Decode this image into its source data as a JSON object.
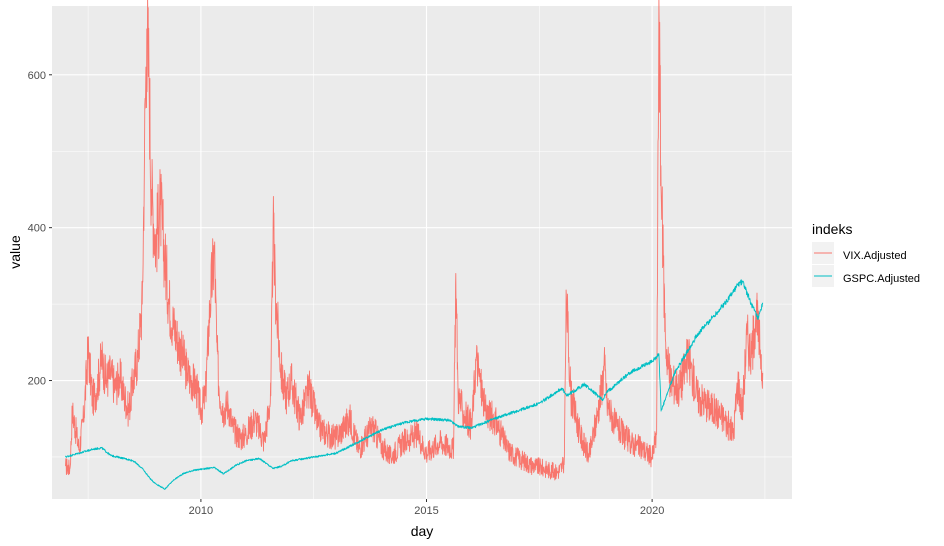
{
  "chart_data": {
    "type": "line",
    "title": "",
    "xlabel": "day",
    "ylabel": "value",
    "xlim": [
      2006.7,
      2023.1
    ],
    "ylim": [
      45,
      690
    ],
    "x_ticks": [
      2010,
      2015,
      2020
    ],
    "x_tick_labels": [
      "2010",
      "2015",
      "2020"
    ],
    "y_ticks": [
      200,
      400,
      600
    ],
    "y_tick_labels": [
      "200",
      "400",
      "600"
    ],
    "grid": true,
    "legend": {
      "title": "indeks",
      "position": "right",
      "entries": [
        "VIX.Adjusted",
        "GSPC.Adjusted"
      ]
    },
    "series": [
      {
        "name": "VIX.Adjusted",
        "color": "#F8766D",
        "x": [
          2007.0,
          2007.1,
          2007.15,
          2007.3,
          2007.4,
          2007.5,
          2007.6,
          2007.7,
          2007.8,
          2007.9,
          2008.0,
          2008.1,
          2008.2,
          2008.3,
          2008.4,
          2008.5,
          2008.6,
          2008.7,
          2008.75,
          2008.8,
          2008.85,
          2008.9,
          2009.0,
          2009.1,
          2009.2,
          2009.3,
          2009.4,
          2009.5,
          2009.6,
          2009.7,
          2009.8,
          2009.9,
          2010.0,
          2010.1,
          2010.2,
          2010.3,
          2010.35,
          2010.4,
          2010.5,
          2010.6,
          2010.7,
          2010.8,
          2010.9,
          2011.0,
          2011.2,
          2011.4,
          2011.55,
          2011.6,
          2011.65,
          2011.7,
          2011.8,
          2011.9,
          2012.0,
          2012.2,
          2012.4,
          2012.6,
          2012.8,
          2013.0,
          2013.3,
          2013.5,
          2013.8,
          2014.0,
          2014.2,
          2014.5,
          2014.8,
          2015.0,
          2015.3,
          2015.6,
          2015.65,
          2015.7,
          2015.8,
          2016.0,
          2016.1,
          2016.3,
          2016.5,
          2016.8,
          2017.0,
          2017.3,
          2017.6,
          2017.9,
          2018.05,
          2018.1,
          2018.2,
          2018.4,
          2018.6,
          2018.8,
          2018.95,
          2019.0,
          2019.2,
          2019.5,
          2019.8,
          2020.0,
          2020.1,
          2020.15,
          2020.2,
          2020.25,
          2020.3,
          2020.4,
          2020.6,
          2020.8,
          2021.0,
          2021.2,
          2021.4,
          2021.6,
          2021.8,
          2021.9,
          2022.0,
          2022.1,
          2022.2,
          2022.3,
          2022.4,
          2022.45
        ],
        "values": [
          88,
          85,
          160,
          110,
          150,
          240,
          175,
          190,
          230,
          200,
          210,
          190,
          205,
          180,
          160,
          200,
          230,
          300,
          500,
          660,
          600,
          450,
          380,
          430,
          360,
          300,
          270,
          250,
          230,
          210,
          200,
          190,
          160,
          180,
          300,
          370,
          250,
          190,
          160,
          170,
          140,
          130,
          125,
          130,
          150,
          120,
          180,
          400,
          320,
          270,
          200,
          180,
          200,
          150,
          190,
          140,
          130,
          125,
          150,
          110,
          140,
          115,
          100,
          120,
          130,
          105,
          120,
          110,
          340,
          180,
          160,
          140,
          230,
          160,
          150,
          110,
          100,
          90,
          85,
          80,
          90,
          310,
          180,
          130,
          100,
          160,
          220,
          170,
          140,
          120,
          110,
          100,
          130,
          700,
          450,
          350,
          250,
          200,
          190,
          230,
          180,
          170,
          160,
          150,
          130,
          200,
          160,
          260,
          230,
          290,
          240,
          210
        ]
      },
      {
        "name": "GSPC.Adjusted",
        "color": "#00BFC4",
        "x": [
          2007.0,
          2007.3,
          2007.6,
          2007.8,
          2008.0,
          2008.3,
          2008.5,
          2008.7,
          2008.9,
          2009.0,
          2009.2,
          2009.4,
          2009.6,
          2009.8,
          2010.0,
          2010.3,
          2010.5,
          2010.8,
          2011.0,
          2011.3,
          2011.6,
          2011.8,
          2012.0,
          2012.5,
          2013.0,
          2013.5,
          2014.0,
          2014.5,
          2015.0,
          2015.5,
          2015.7,
          2016.0,
          2016.5,
          2017.0,
          2017.5,
          2018.0,
          2018.1,
          2018.5,
          2018.9,
          2019.0,
          2019.5,
          2020.0,
          2020.15,
          2020.2,
          2020.5,
          2020.8,
          2021.0,
          2021.3,
          2021.6,
          2021.9,
          2022.0,
          2022.2,
          2022.35,
          2022.45
        ],
        "values": [
          100,
          105,
          110,
          112,
          102,
          98,
          95,
          85,
          70,
          65,
          58,
          70,
          78,
          82,
          84,
          86,
          78,
          90,
          95,
          98,
          85,
          88,
          95,
          100,
          105,
          120,
          135,
          145,
          150,
          148,
          140,
          138,
          150,
          160,
          170,
          190,
          180,
          195,
          175,
          185,
          210,
          225,
          235,
          160,
          210,
          240,
          260,
          280,
          300,
          325,
          330,
          300,
          280,
          300
        ]
      }
    ]
  }
}
